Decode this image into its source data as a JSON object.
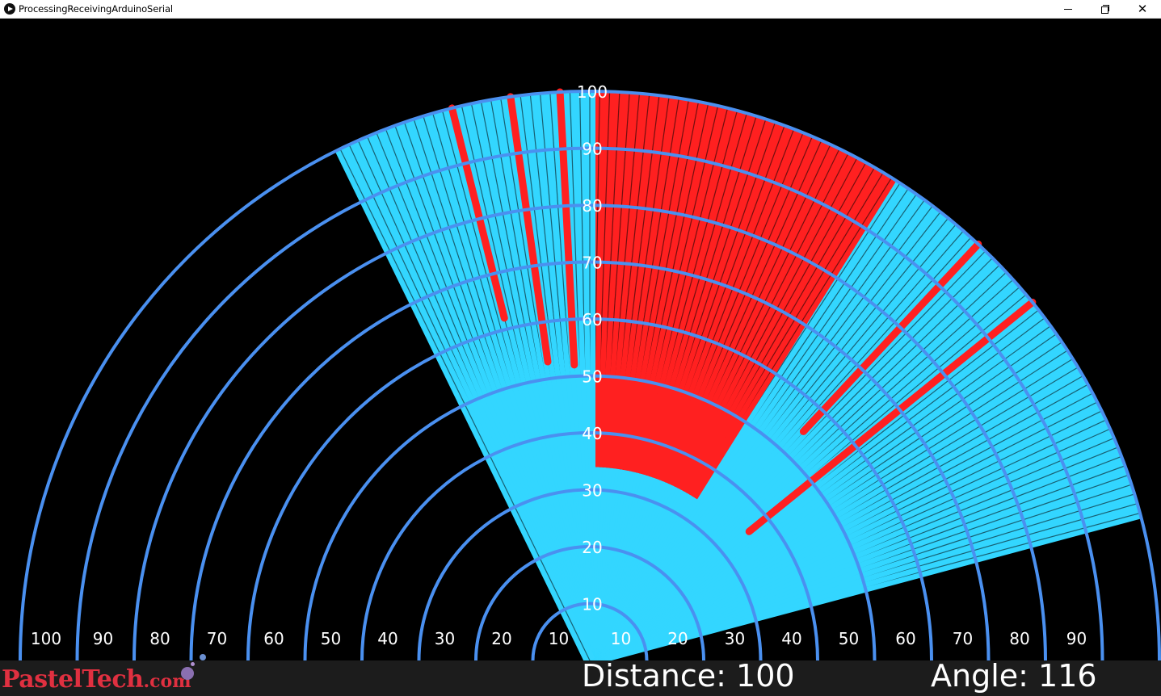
{
  "window": {
    "title": "ProcessingReceivingArduinoSerial",
    "icon": "processing-play-icon",
    "controls": {
      "minimize": "minimize-icon",
      "maximize": "restore-icon",
      "close": "✕"
    }
  },
  "radar": {
    "colors": {
      "background": "#000000",
      "ring": "#4a90f0",
      "clear": "#33d6ff",
      "object": "#ff2020",
      "label": "#ffffff"
    },
    "max_range": 100,
    "vertical_labels": [
      "10",
      "20",
      "30",
      "40",
      "50",
      "60",
      "70",
      "80",
      "90",
      "100"
    ],
    "left_labels": [
      "100",
      "90",
      "80",
      "70",
      "60",
      "50",
      "40",
      "30",
      "20",
      "10"
    ],
    "right_labels": [
      "10",
      "20",
      "30",
      "40",
      "50",
      "60",
      "70",
      "80",
      "90"
    ],
    "sweep": {
      "start_angle_deg": 15,
      "end_angle_deg": 116,
      "cyan_segments": [
        {
          "from": 15,
          "to": 34,
          "reading": 100
        },
        {
          "from": 34,
          "to": 58,
          "reading": 100
        },
        {
          "from": 58,
          "to": 90,
          "reading": 34
        },
        {
          "from": 90,
          "to": 116,
          "reading": 100
        }
      ],
      "red_spikes": [
        {
          "angle": 39,
          "reading": 36
        },
        {
          "angle": 47,
          "reading": 55
        },
        {
          "angle": 93,
          "reading": 52
        },
        {
          "angle": 98,
          "reading": 53
        },
        {
          "angle": 104,
          "reading": 62
        }
      ]
    }
  },
  "status": {
    "distance": "Distance: 100",
    "angle": "Angle: 116"
  },
  "watermark": {
    "main": "PastelTech",
    "suffix": ".com"
  }
}
